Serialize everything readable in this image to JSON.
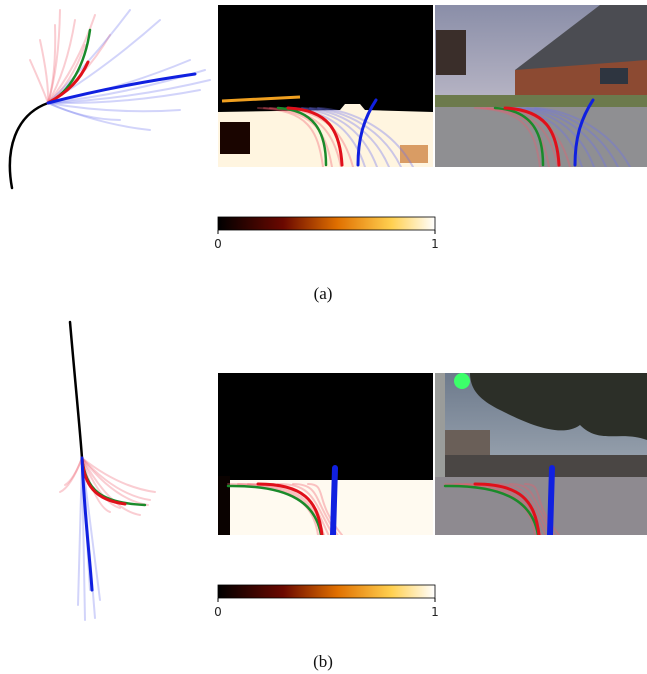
{
  "panels": [
    {
      "label": "(a)",
      "colorbar": {
        "min_label": 0,
        "max_label": 1
      }
    },
    {
      "label": "(b)",
      "colorbar": {
        "min_label": 0,
        "max_label": 1
      }
    }
  ]
}
